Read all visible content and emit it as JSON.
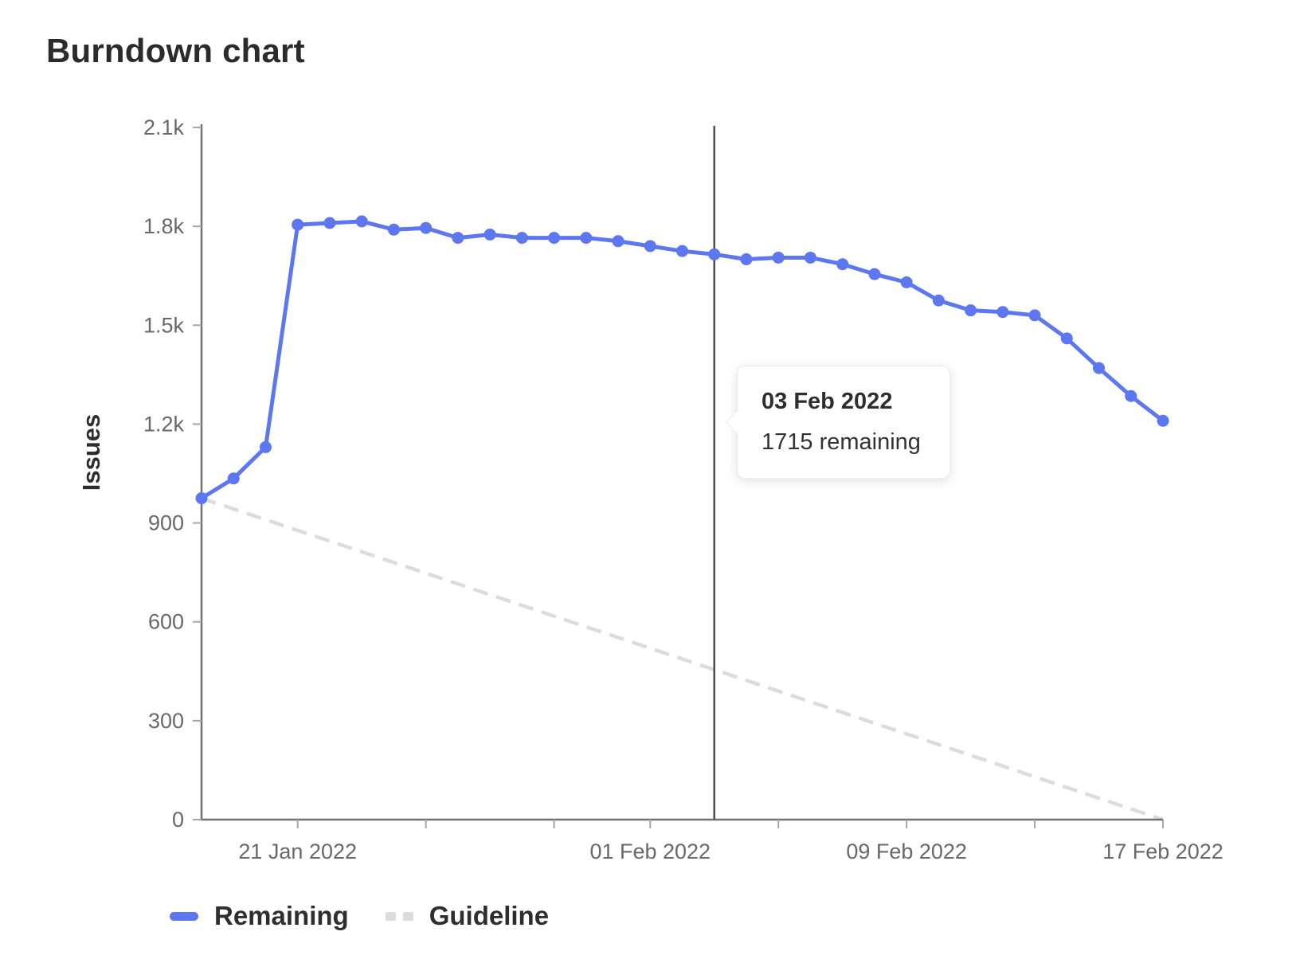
{
  "colors": {
    "remaining": "#5c77ef",
    "guideline": "#dcdcdc",
    "axis_line": "#6f7277",
    "tick_mark": "#a4a6ab",
    "tick_label": "#68686d",
    "today_line": "#4c4c4c",
    "title_text": "#2b2b2b",
    "legend_text": "#2e2e2e"
  },
  "chart_data": {
    "type": "line",
    "title": "Burndown chart",
    "ylabel": "Issues",
    "ylim": [
      0,
      2100
    ],
    "grid": false,
    "legend_position": "bottom-left",
    "y_ticks": [
      {
        "value": 0,
        "label": "0"
      },
      {
        "value": 300,
        "label": "300"
      },
      {
        "value": 600,
        "label": "600"
      },
      {
        "value": 900,
        "label": "900"
      },
      {
        "value": 1200,
        "label": "1.2k"
      },
      {
        "value": 1500,
        "label": "1.5k"
      },
      {
        "value": 1800,
        "label": "1.8k"
      },
      {
        "value": 2100,
        "label": "2.1k"
      }
    ],
    "x_ticks": [
      {
        "index": 3,
        "label": "21 Jan 2022"
      },
      {
        "index": 7,
        "label": ""
      },
      {
        "index": 11,
        "label": ""
      },
      {
        "index": 14,
        "label": "01 Feb 2022"
      },
      {
        "index": 18,
        "label": ""
      },
      {
        "index": 22,
        "label": "09 Feb 2022"
      },
      {
        "index": 26,
        "label": ""
      },
      {
        "index": 30,
        "label": "17 Feb 2022"
      }
    ],
    "series": [
      {
        "name": "Remaining",
        "style": "solid",
        "values": [
          975,
          1035,
          1130,
          1805,
          1810,
          1815,
          1790,
          1795,
          1765,
          1775,
          1765,
          1765,
          1765,
          1755,
          1740,
          1725,
          1715,
          1700,
          1705,
          1705,
          1685,
          1655,
          1630,
          1575,
          1545,
          1540,
          1530,
          1460,
          1370,
          1285,
          1210
        ]
      },
      {
        "name": "Guideline",
        "style": "dashed",
        "points": [
          {
            "index": 0,
            "value": 975
          },
          {
            "index": 30,
            "value": 0
          }
        ]
      }
    ],
    "today_index": 16,
    "tooltip": {
      "title": "03 Feb 2022",
      "body": "1715 remaining"
    }
  }
}
